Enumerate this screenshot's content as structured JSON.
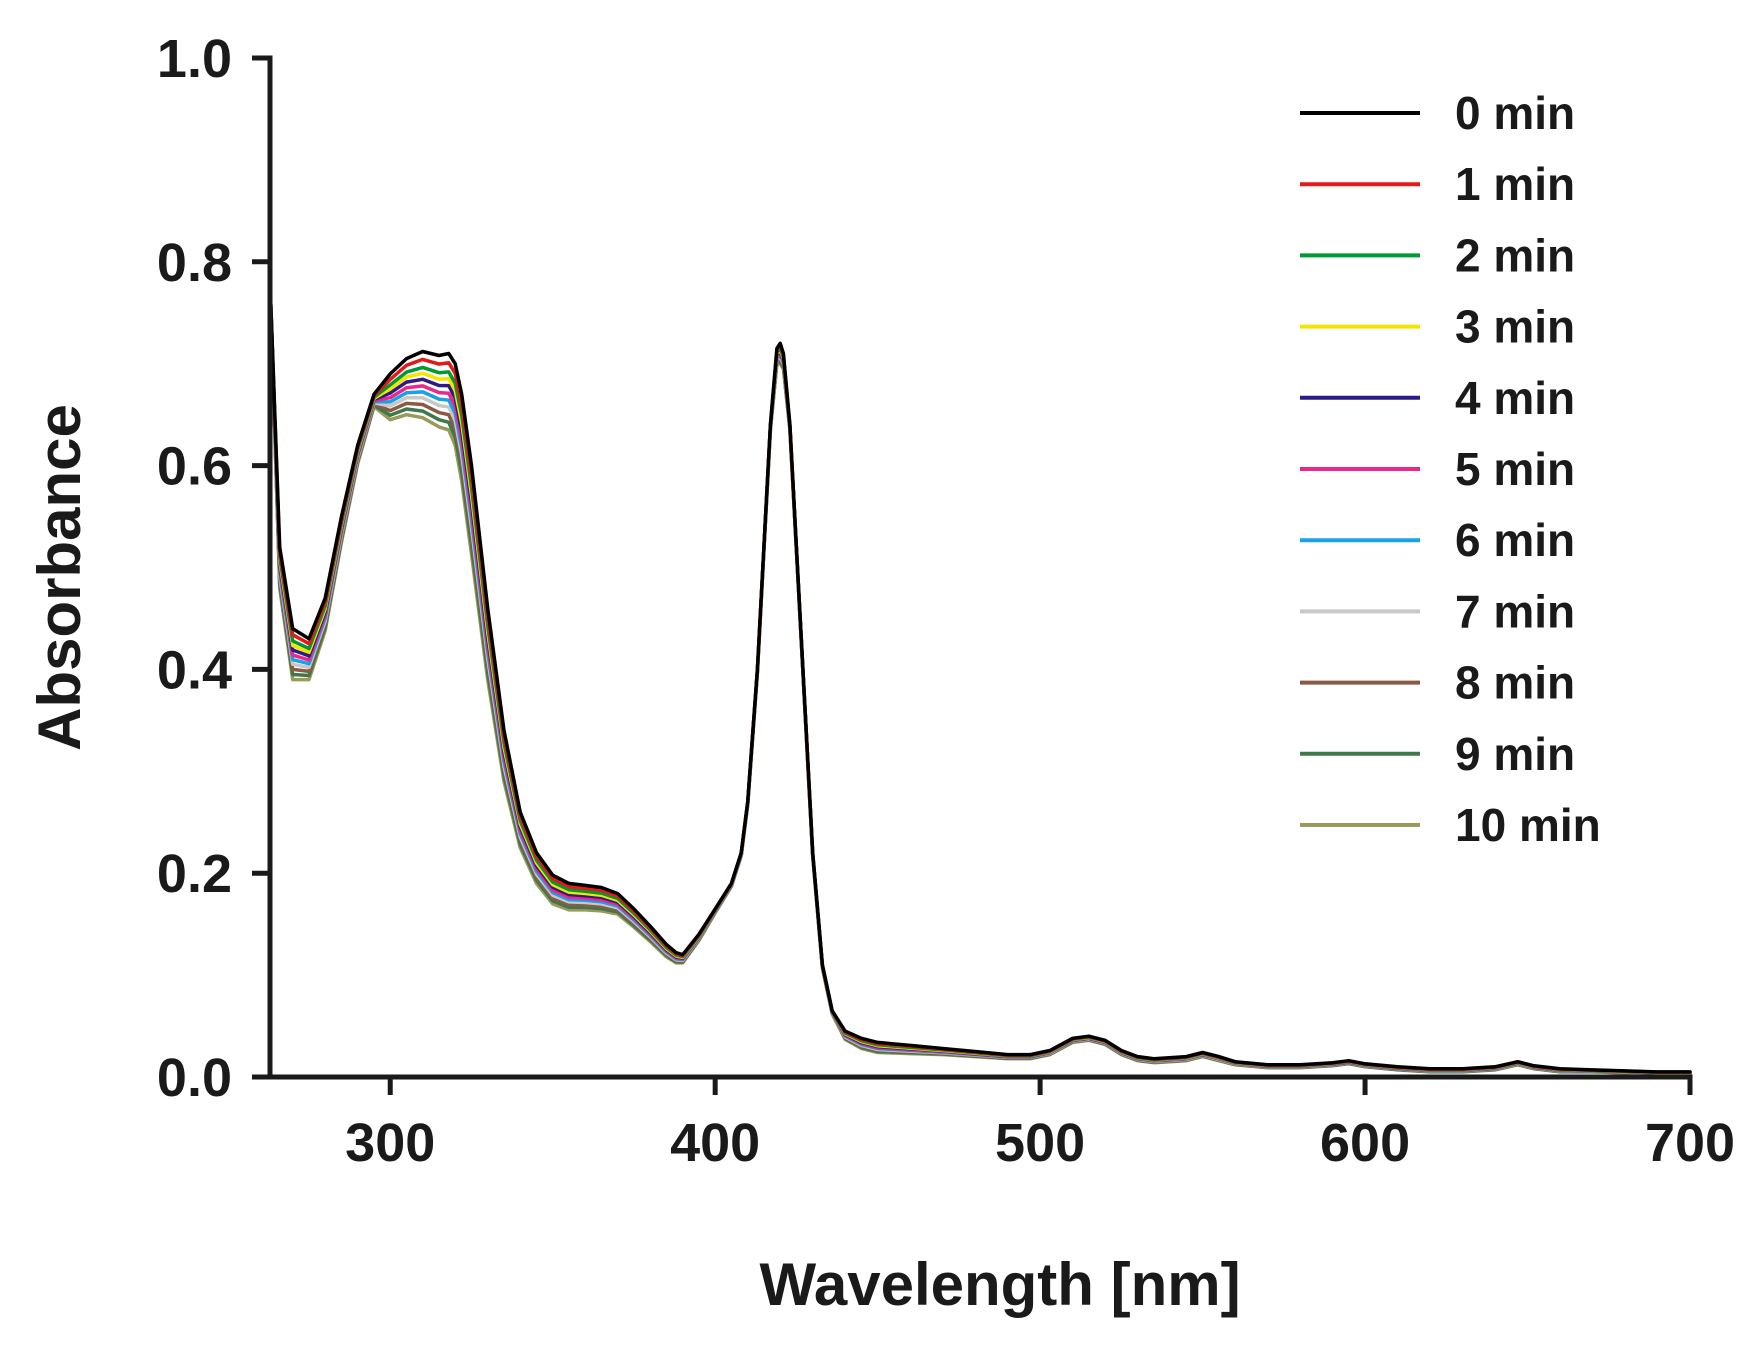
{
  "chart_data": {
    "type": "line",
    "title": "",
    "xlabel": "Wavelength [nm]",
    "ylabel": "Absorbance",
    "xlim": [
      263,
      700
    ],
    "ylim": [
      0.0,
      1.0
    ],
    "xticks": [
      300,
      400,
      500,
      600,
      700
    ],
    "xtick_labels": [
      "300",
      "400",
      "500",
      "600",
      "700"
    ],
    "yticks": [
      0.0,
      0.2,
      0.4,
      0.6,
      0.8,
      1.0
    ],
    "ytick_labels": [
      "0.0",
      "0.2",
      "0.4",
      "0.6",
      "0.8",
      "1.0"
    ],
    "grid": false,
    "legend_position": "top-right",
    "x": [
      263,
      266,
      270,
      275,
      280,
      285,
      290,
      295,
      300,
      305,
      310,
      315,
      318,
      320,
      322,
      325,
      330,
      335,
      340,
      345,
      350,
      355,
      360,
      365,
      370,
      375,
      380,
      385,
      388,
      390,
      395,
      400,
      405,
      408,
      410,
      413,
      415,
      417,
      419,
      420,
      421,
      423,
      425,
      428,
      430,
      433,
      436,
      440,
      445,
      450,
      460,
      470,
      480,
      490,
      497,
      503,
      510,
      515,
      520,
      525,
      530,
      535,
      545,
      550,
      555,
      560,
      570,
      580,
      590,
      595,
      600,
      610,
      620,
      630,
      640,
      647,
      652,
      660,
      670,
      680,
      690,
      700
    ],
    "series": [
      {
        "name": "0 min",
        "color": "#000000",
        "scale": 0.0,
        "values": [
          0.78,
          0.52,
          0.44,
          0.43,
          0.47,
          0.55,
          0.62,
          0.67,
          0.69,
          0.705,
          0.712,
          0.708,
          0.71,
          0.7,
          0.67,
          0.6,
          0.46,
          0.34,
          0.26,
          0.22,
          0.198,
          0.19,
          0.188,
          0.186,
          0.18,
          0.165,
          0.148,
          0.13,
          0.122,
          0.12,
          0.14,
          0.165,
          0.19,
          0.22,
          0.27,
          0.4,
          0.52,
          0.64,
          0.715,
          0.72,
          0.71,
          0.64,
          0.52,
          0.34,
          0.22,
          0.11,
          0.065,
          0.045,
          0.038,
          0.034,
          0.031,
          0.028,
          0.025,
          0.022,
          0.022,
          0.026,
          0.038,
          0.04,
          0.036,
          0.026,
          0.02,
          0.018,
          0.02,
          0.024,
          0.02,
          0.015,
          0.012,
          0.012,
          0.014,
          0.016,
          0.013,
          0.01,
          0.008,
          0.008,
          0.01,
          0.015,
          0.011,
          0.008,
          0.007,
          0.006,
          0.005,
          0.005
        ]
      },
      {
        "name": "1 min",
        "color": "#e31a1c",
        "scale": 0.12
      },
      {
        "name": "2 min",
        "color": "#009933",
        "scale": 0.24
      },
      {
        "name": "3 min",
        "color": "#f2e600",
        "scale": 0.33
      },
      {
        "name": "4 min",
        "color": "#2e1a87",
        "scale": 0.42
      },
      {
        "name": "5 min",
        "color": "#e8288a",
        "scale": 0.52
      },
      {
        "name": "6 min",
        "color": "#1aa0e6",
        "scale": 0.61
      },
      {
        "name": "7 min",
        "color": "#c8c8c8",
        "scale": 0.7
      },
      {
        "name": "8 min",
        "color": "#8a5a44",
        "scale": 0.8
      },
      {
        "name": "9 min",
        "color": "#3c7a4c",
        "scale": 0.9
      },
      {
        "name": "10 min",
        "color": "#9a9a5a",
        "scale": 1.0
      }
    ],
    "min_series_offset": [
      0.0,
      0.04,
      0.05,
      0.04,
      0.032,
      0.025,
      0.018,
      0.012,
      0.045,
      0.055,
      0.065,
      0.07,
      0.075,
      0.08,
      0.085,
      0.087,
      0.07,
      0.05,
      0.035,
      0.03,
      0.028,
      0.026,
      0.024,
      0.023,
      0.02,
      0.018,
      0.015,
      0.012,
      0.01,
      0.008,
      0.006,
      0.004,
      0.003,
      0.003,
      0.003,
      0.003,
      0.003,
      0.005,
      0.015,
      0.02,
      0.015,
      0.005,
      0.003,
      0.003,
      0.003,
      0.003,
      0.003,
      0.008,
      0.01,
      0.01,
      0.008,
      0.006,
      0.005,
      0.004,
      0.004,
      0.004,
      0.004,
      0.004,
      0.004,
      0.004,
      0.004,
      0.004,
      0.004,
      0.004,
      0.004,
      0.003,
      0.003,
      0.003,
      0.003,
      0.003,
      0.003,
      0.003,
      0.003,
      0.003,
      0.003,
      0.003,
      0.003,
      0.003,
      0.002,
      0.002,
      0.002,
      0.002
    ]
  }
}
